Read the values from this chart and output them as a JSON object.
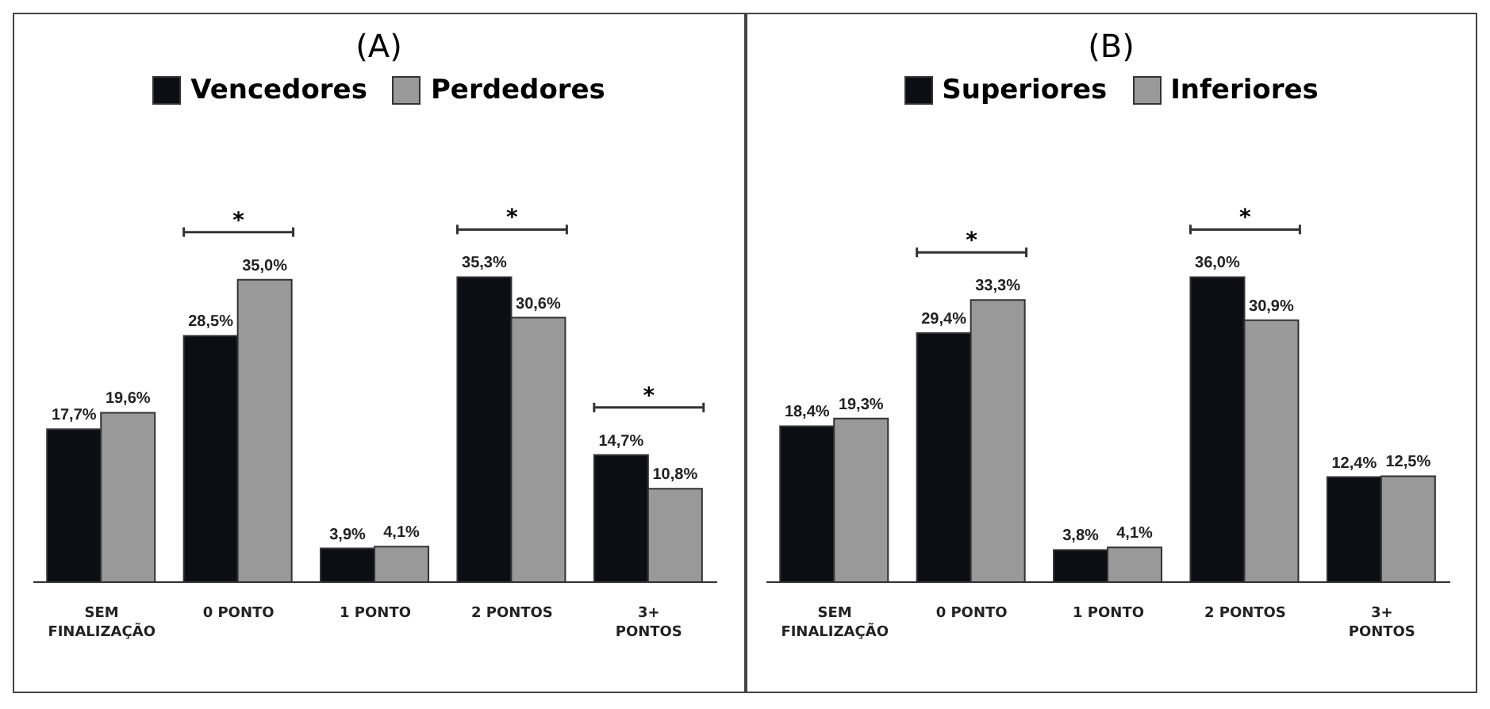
{
  "chart_data": [
    {
      "type": "bar",
      "title": "(A)",
      "categories": [
        "SEM FINALIZAÇÃO",
        "0 PONTO",
        "1 PONTO",
        "2 PONTOS",
        "3+ PONTOS"
      ],
      "legend": "top",
      "series": [
        {
          "name": "Vencedores",
          "color": "#0d0d14",
          "values": [
            17.7,
            28.5,
            3.9,
            35.3,
            14.7
          ],
          "value_labels": [
            "17,7%",
            "28,5%",
            "3,9%",
            "35,3%",
            "14,7%"
          ]
        },
        {
          "name": "Perdedores",
          "color": "#999999",
          "values": [
            19.6,
            35.0,
            4.1,
            30.6,
            10.8
          ],
          "value_labels": [
            "19,6%",
            "35,0%",
            "4,1%",
            "30,6%",
            "10,8%"
          ]
        }
      ],
      "annotations": [
        {
          "text": "*",
          "x": "0 PONTO",
          "y": 35.0
        },
        {
          "text": "*",
          "x": "2 PONTOS",
          "y": 35.3
        },
        {
          "text": "*",
          "x": "3+ PONTOS",
          "y": 14.7
        }
      ]
    },
    {
      "type": "bar",
      "title": "(B)",
      "categories": [
        "SEM FINALIZAÇÃO",
        "0 PONTO",
        "1 PONTO",
        "2 PONTOS",
        "3+ PONTOS"
      ],
      "legend": "top",
      "series": [
        {
          "name": "Superiores",
          "color": "#0d0d14",
          "values": [
            18.4,
            29.4,
            3.8,
            36.0,
            12.4
          ],
          "value_labels": [
            "18,4%",
            "29,4%",
            "3,8%",
            "36,0%",
            "12,4%"
          ]
        },
        {
          "name": "Inferiores",
          "color": "#999999",
          "values": [
            19.3,
            33.3,
            4.1,
            30.9,
            12.5
          ],
          "value_labels": [
            "19,3%",
            "33,3%",
            "4,1%",
            "30,9%",
            "12,5%"
          ]
        }
      ],
      "annotations": [
        {
          "text": "*",
          "x": "0 PONTO",
          "y": 33.3
        },
        {
          "text": "*",
          "x": "2 PONTOS",
          "y": 36.0
        }
      ]
    }
  ]
}
